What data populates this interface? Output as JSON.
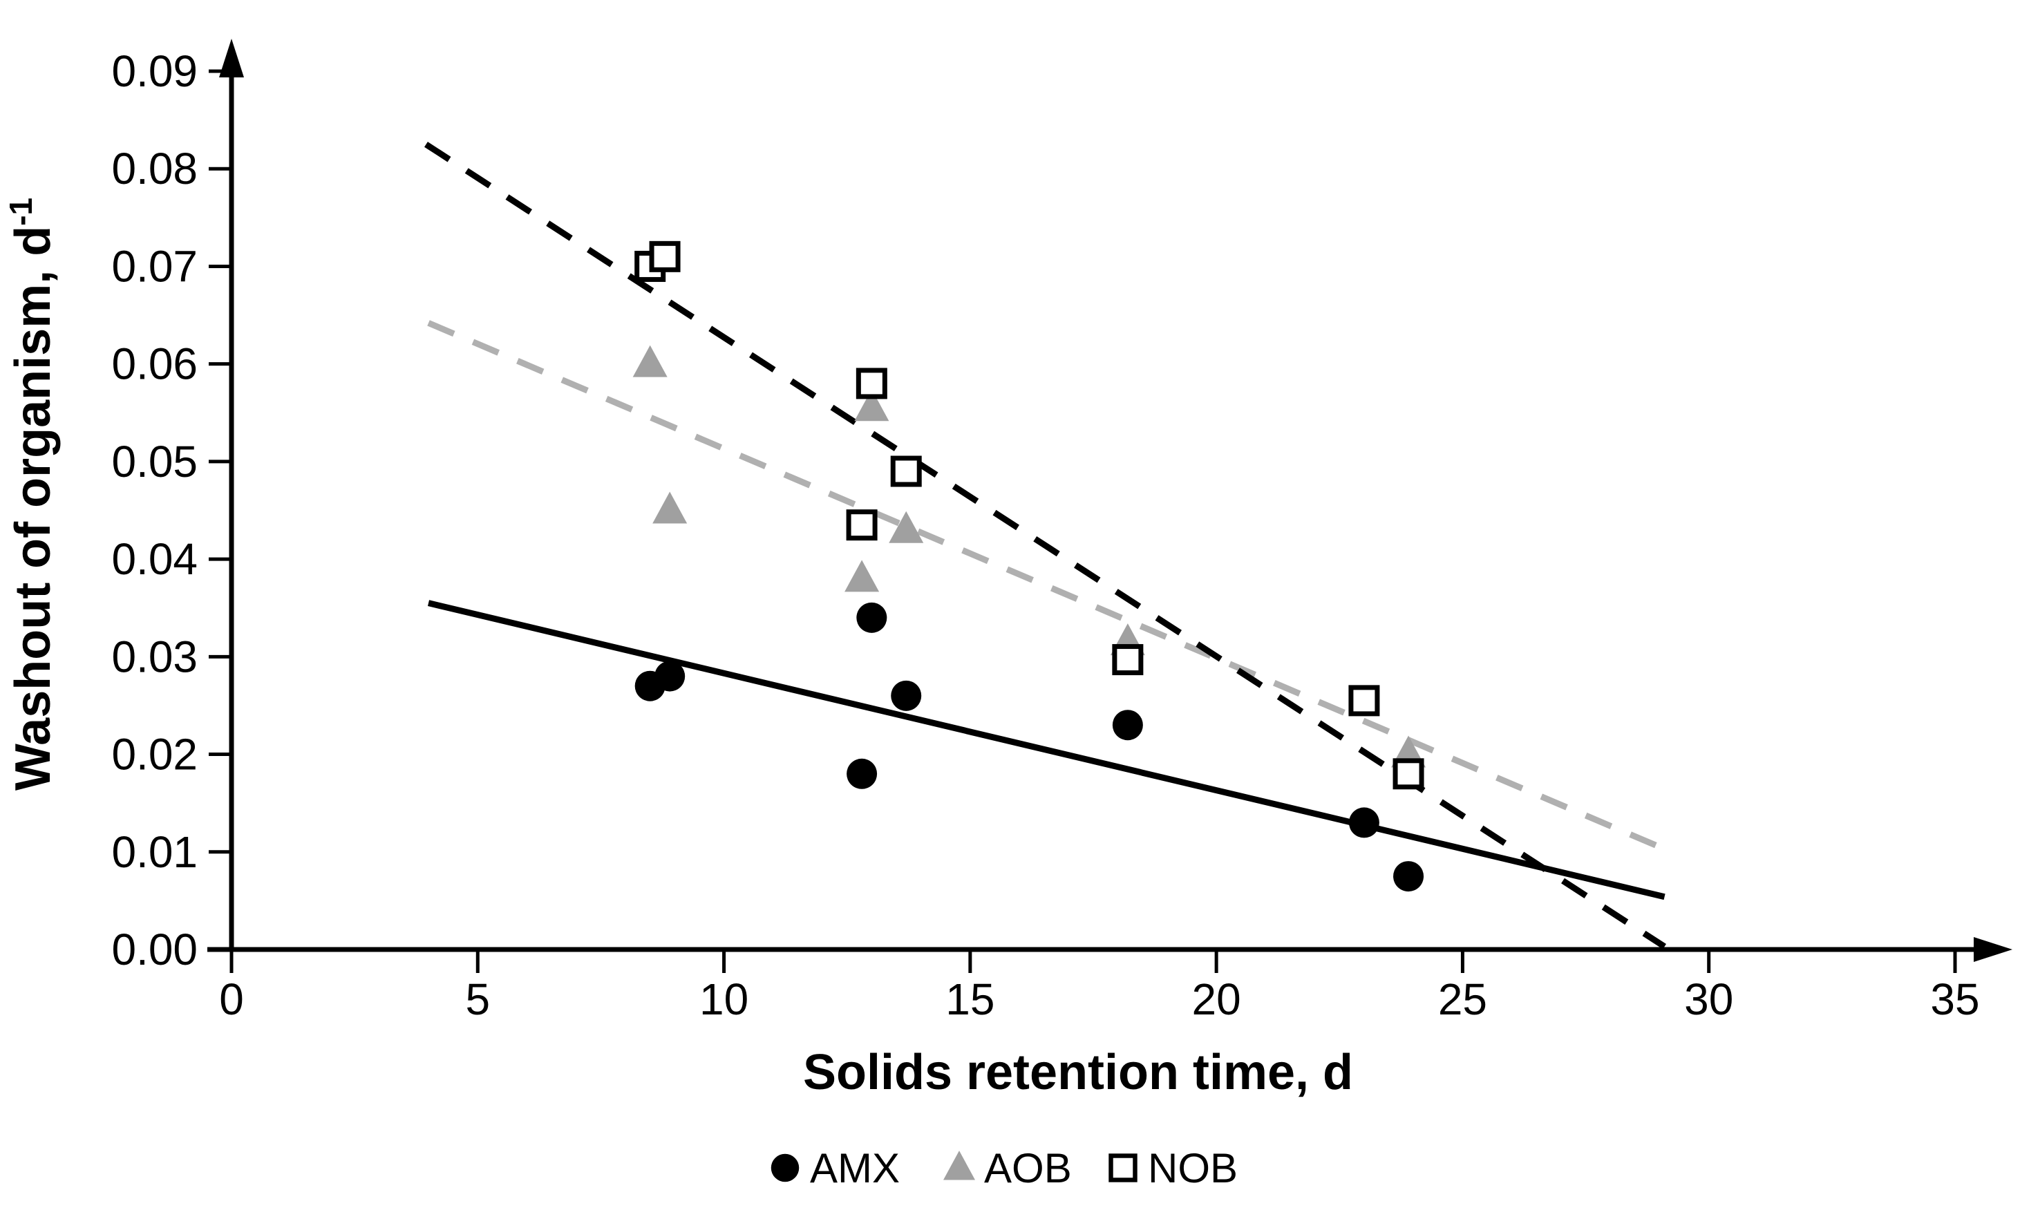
{
  "chart_data": {
    "type": "scatter",
    "title": "",
    "xlabel": "Solids retention time, d",
    "ylabel": "Washout of organism, d⁻¹",
    "ylabel_main": "Washout of organism, d",
    "ylabel_sup": "-1",
    "xlim": [
      0,
      35
    ],
    "ylim": [
      0,
      0.09
    ],
    "xticks": [
      0,
      5,
      10,
      15,
      20,
      25,
      30,
      35
    ],
    "yticks": [
      0,
      0.01,
      0.02,
      0.03,
      0.04,
      0.05,
      0.06,
      0.07,
      0.08,
      0.09
    ],
    "ytick_decimals": 2,
    "grid": false,
    "legend_position": "bottom-center",
    "axis_color": "#000000",
    "background_color": "#ffffff",
    "series": [
      {
        "name": "AMX",
        "marker": "circle",
        "marker_color": "#000000",
        "marker_fill": "#000000",
        "points": [
          [
            8.5,
            0.027
          ],
          [
            8.9,
            0.028
          ],
          [
            12.8,
            0.018
          ],
          [
            13.0,
            0.034
          ],
          [
            13.7,
            0.026
          ],
          [
            18.2,
            0.023
          ],
          [
            23.0,
            0.013
          ],
          [
            23.9,
            0.0075
          ]
        ],
        "trendline": {
          "style": "solid",
          "color": "#000000",
          "from": [
            4.0,
            0.0355
          ],
          "to": [
            29.1,
            0.0054
          ]
        }
      },
      {
        "name": "AOB",
        "marker": "triangle",
        "marker_color": "#a0a0a0",
        "marker_fill": "#a0a0a0",
        "points": [
          [
            8.5,
            0.06
          ],
          [
            8.9,
            0.045
          ],
          [
            12.8,
            0.038
          ],
          [
            13.0,
            0.0555
          ],
          [
            13.7,
            0.043
          ],
          [
            18.2,
            0.0315
          ],
          [
            23.9,
            0.02
          ]
        ],
        "trendline": {
          "style": "dashed",
          "color": "#b0b0b0",
          "from": [
            4.0,
            0.0642
          ],
          "to": [
            29.1,
            0.0103
          ]
        }
      },
      {
        "name": "NOB",
        "marker": "square",
        "marker_color": "#000000",
        "marker_fill": "#ffffff",
        "points": [
          [
            8.5,
            0.07
          ],
          [
            8.8,
            0.071
          ],
          [
            12.8,
            0.0435
          ],
          [
            13.0,
            0.058
          ],
          [
            13.7,
            0.049
          ],
          [
            18.2,
            0.0297
          ],
          [
            23.0,
            0.0255
          ],
          [
            23.9,
            0.018
          ]
        ],
        "trendline": {
          "style": "dashed",
          "color": "#000000",
          "from": [
            3.95,
            0.0825
          ],
          "to": [
            29.1,
            0.0003
          ]
        }
      }
    ]
  }
}
